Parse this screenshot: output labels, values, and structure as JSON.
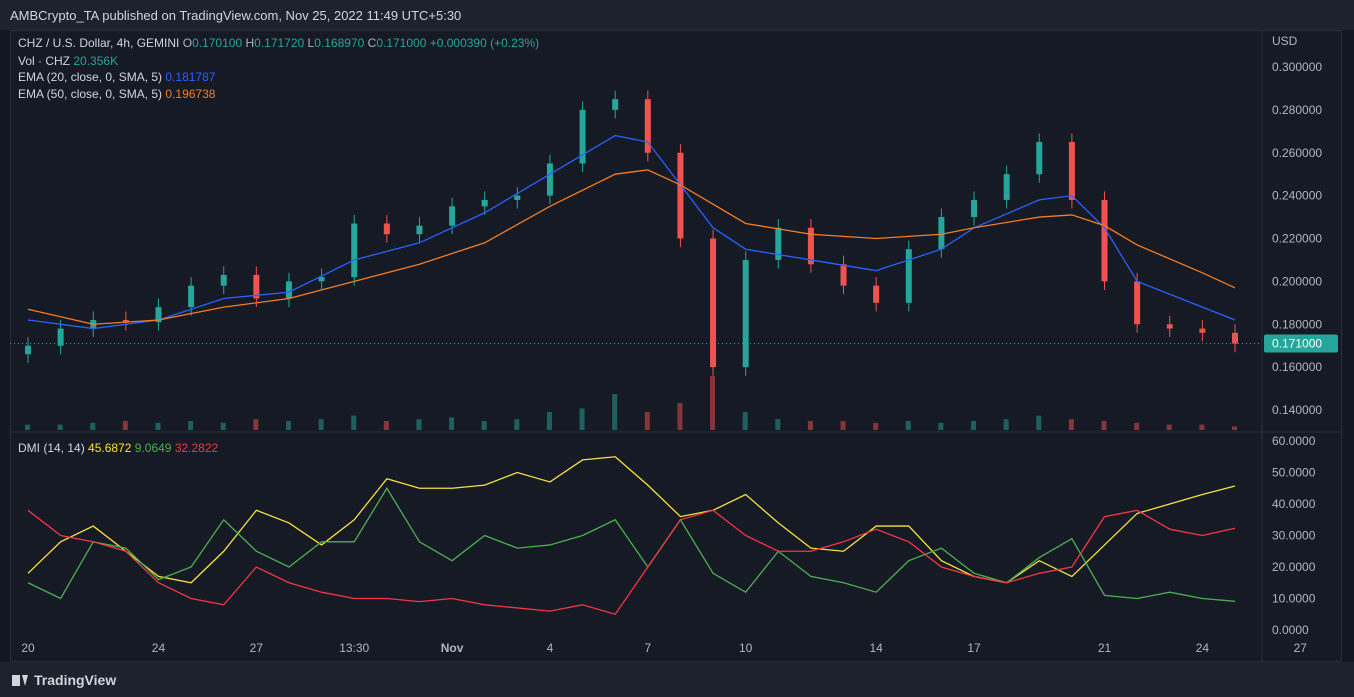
{
  "header": {
    "published": "AMBCrypto_TA published on TradingView.com, Nov 25, 2022 11:49 UTC+5:30"
  },
  "legend": {
    "symbol": "CHZ / U.S. Dollar, 4h, GEMINI",
    "o_label": "O",
    "o": "0.170100",
    "h_label": "H",
    "h": "0.171720",
    "l_label": "L",
    "l": "0.168970",
    "c_label": "C",
    "c": "0.171000",
    "change": "+0.000390 (+0.23%)",
    "vol_label": "Vol · CHZ",
    "vol": "20.356K",
    "ema20_label": "EMA (20, close, 0, SMA, 5)",
    "ema20": "0.181787",
    "ema50_label": "EMA (50, close, 0, SMA, 5)",
    "ema50": "0.196738",
    "dmi_label": "DMI (14, 14)",
    "adx": "45.6872",
    "plus_di": "9.0649",
    "minus_di": "32.2822"
  },
  "colors": {
    "up": "#26a69a",
    "down": "#ef5350",
    "ema20": "#2962ff",
    "ema50": "#f57c20",
    "adx": "#f5e23b",
    "plus_di": "#4caf50",
    "minus_di": "#f23645",
    "price_tag": "#26a69a"
  },
  "footer": {
    "brand": "TradingView"
  },
  "chart_data": [
    {
      "type": "candlestick",
      "title": "CHZ / U.S. Dollar, 4h, GEMINI",
      "ylabel": "USD",
      "ylim": [
        0.13,
        0.305
      ],
      "y_ticks": [
        "0.300000",
        "0.280000",
        "0.260000",
        "0.240000",
        "0.220000",
        "0.200000",
        "0.180000",
        "0.160000",
        "0.140000"
      ],
      "x_ticks": [
        "20",
        "24",
        "27",
        "13:30",
        "Nov",
        "4",
        "7",
        "10",
        "14",
        "17",
        "21",
        "24",
        "27"
      ],
      "x_tick_day_index": [
        0,
        4,
        7,
        10,
        13,
        16,
        19,
        22,
        26,
        29,
        33,
        36,
        39
      ],
      "last_price": "0.171000",
      "series": [
        {
          "name": "close",
          "x_day": [
            0,
            1,
            2,
            3,
            4,
            5,
            6,
            7,
            8,
            9,
            10,
            11,
            12,
            13,
            14,
            15,
            16,
            17,
            18,
            19,
            20,
            21,
            22,
            23,
            24,
            25,
            26,
            27,
            28,
            29,
            30,
            31,
            32,
            33,
            34,
            35,
            36,
            37
          ],
          "values": [
            0.17,
            0.178,
            0.182,
            0.181,
            0.188,
            0.198,
            0.203,
            0.192,
            0.2,
            0.202,
            0.227,
            0.222,
            0.226,
            0.235,
            0.238,
            0.24,
            0.255,
            0.28,
            0.285,
            0.26,
            0.22,
            0.16,
            0.21,
            0.225,
            0.208,
            0.198,
            0.19,
            0.215,
            0.23,
            0.238,
            0.25,
            0.265,
            0.238,
            0.2,
            0.18,
            0.178,
            0.176,
            0.171
          ]
        },
        {
          "name": "EMA (20, close, 0, SMA, 5)",
          "x_day": [
            0,
            2,
            4,
            6,
            8,
            10,
            12,
            14,
            16,
            18,
            19,
            20,
            21,
            22,
            24,
            26,
            28,
            29,
            31,
            32,
            33,
            34,
            36,
            37
          ],
          "values": [
            0.182,
            0.178,
            0.182,
            0.192,
            0.195,
            0.21,
            0.218,
            0.232,
            0.25,
            0.268,
            0.265,
            0.245,
            0.225,
            0.215,
            0.21,
            0.205,
            0.215,
            0.225,
            0.238,
            0.24,
            0.225,
            0.2,
            0.188,
            0.182
          ]
        },
        {
          "name": "EMA (50, close, 0, SMA, 5)",
          "x_day": [
            0,
            2,
            4,
            6,
            8,
            10,
            12,
            14,
            16,
            18,
            19,
            20,
            21,
            22,
            24,
            26,
            28,
            29,
            31,
            32,
            33,
            34,
            36,
            37
          ],
          "values": [
            0.187,
            0.18,
            0.182,
            0.188,
            0.192,
            0.2,
            0.208,
            0.218,
            0.235,
            0.25,
            0.252,
            0.245,
            0.236,
            0.227,
            0.222,
            0.22,
            0.222,
            0.225,
            0.23,
            0.231,
            0.226,
            0.217,
            0.204,
            0.197
          ]
        }
      ],
      "volume": [
        0.3,
        0.3,
        0.4,
        0.5,
        0.4,
        0.5,
        0.4,
        0.6,
        0.5,
        0.6,
        0.8,
        0.5,
        0.6,
        0.7,
        0.5,
        0.6,
        1.0,
        1.2,
        2.0,
        1.0,
        1.5,
        3.0,
        1.0,
        0.6,
        0.5,
        0.5,
        0.4,
        0.5,
        0.4,
        0.5,
        0.6,
        0.8,
        0.6,
        0.5,
        0.4,
        0.3,
        0.3,
        0.2
      ]
    },
    {
      "type": "line",
      "title": "DMI (14, 14)",
      "ylim": [
        0,
        60
      ],
      "y_ticks": [
        "60.0000",
        "50.0000",
        "40.0000",
        "30.0000",
        "20.0000",
        "10.0000",
        "0.0000"
      ],
      "series": [
        {
          "name": "ADX",
          "x_day": [
            0,
            1,
            2,
            3,
            4,
            5,
            6,
            7,
            8,
            9,
            10,
            11,
            12,
            13,
            14,
            15,
            16,
            17,
            18,
            19,
            20,
            21,
            22,
            23,
            24,
            25,
            26,
            27,
            28,
            29,
            30,
            31,
            32,
            33,
            34,
            35,
            36,
            37
          ],
          "values": [
            18,
            28,
            33,
            25,
            17,
            15,
            25,
            38,
            34,
            27,
            35,
            48,
            45,
            45,
            46,
            50,
            47,
            54,
            55,
            46,
            36,
            38,
            43,
            34,
            26,
            25,
            33,
            33,
            22,
            17,
            15,
            22,
            17,
            27,
            37,
            40,
            43,
            45.7
          ]
        },
        {
          "name": "+DI",
          "x_day": [
            0,
            1,
            2,
            3,
            4,
            5,
            6,
            7,
            8,
            9,
            10,
            11,
            12,
            13,
            14,
            15,
            16,
            17,
            18,
            19,
            20,
            21,
            22,
            23,
            24,
            25,
            26,
            27,
            28,
            29,
            30,
            31,
            32,
            33,
            34,
            35,
            36,
            37
          ],
          "values": [
            15,
            10,
            28,
            26,
            16,
            20,
            35,
            25,
            20,
            28,
            28,
            45,
            28,
            22,
            30,
            26,
            27,
            30,
            35,
            20,
            35,
            18,
            12,
            25,
            17,
            15,
            12,
            22,
            26,
            18,
            15,
            23,
            29,
            11,
            10,
            12,
            10,
            9.1
          ]
        },
        {
          "name": "-DI",
          "x_day": [
            0,
            1,
            2,
            3,
            4,
            5,
            6,
            7,
            8,
            9,
            10,
            11,
            12,
            13,
            14,
            15,
            16,
            17,
            18,
            19,
            20,
            21,
            22,
            23,
            24,
            25,
            26,
            27,
            28,
            29,
            30,
            31,
            32,
            33,
            34,
            35,
            36,
            37
          ],
          "values": [
            38,
            30,
            28,
            25,
            15,
            10,
            8,
            20,
            15,
            12,
            10,
            10,
            9,
            10,
            8,
            7,
            6,
            8,
            5,
            20,
            35,
            38,
            30,
            25,
            25,
            28,
            32,
            28,
            20,
            17,
            15,
            18,
            20,
            36,
            38,
            32,
            30,
            32.3
          ]
        }
      ]
    }
  ]
}
